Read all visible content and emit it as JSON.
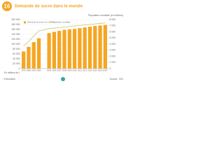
{
  "badge": "16",
  "footnote": "* Estimation",
  "source": "Source : ISO",
  "chart_data": {
    "type": "bar",
    "title": "Demande de sucre dans le monde",
    "ylabel": "En milliers de t",
    "y2label": "Population mondiale (en millions)",
    "categories": [
      "1970",
      "1980",
      "1990",
      "2000",
      "2005",
      "2006",
      "2007",
      "2008",
      "2009",
      "2010",
      "2011",
      "2012",
      "2013",
      "2014",
      "2015",
      "2016*"
    ],
    "series": [
      {
        "name": "Demande de sucre (en 1 000 t)",
        "color": "#f5a623",
        "values": [
          70000,
          89000,
          108000,
          124000,
          145000,
          150000,
          154000,
          158000,
          160000,
          162000,
          165000,
          168000,
          171000,
          174000,
          176000,
          178000
        ]
      },
      {
        "name": "Population mondiale",
        "color": "#c8c46a",
        "axis": "y2",
        "values": [
          3700,
          4440,
          5310,
          6140,
          6540,
          6620,
          6700,
          6790,
          6870,
          6960,
          7040,
          7130,
          7210,
          7300,
          7380,
          7470
        ]
      }
    ],
    "ylim": [
      0,
      200000
    ],
    "yticks": [
      0,
      {
        "value": 20000,
        "label": "20 000"
      },
      {
        "value": 40000,
        "label": "40 000"
      },
      {
        "value": 60000,
        "label": "60 000"
      },
      {
        "value": 80000,
        "label": "80 000"
      },
      {
        "value": 100000,
        "label": "100 000"
      },
      {
        "value": 120000,
        "label": "120 000"
      },
      {
        "value": 140000,
        "label": "140 000"
      },
      {
        "value": 160000,
        "label": "160 000"
      },
      {
        "value": 180000,
        "label": "180 000"
      },
      {
        "value": 200000,
        "label": "200 000"
      }
    ],
    "y2lim": [
      0,
      8000
    ],
    "y2ticks": [
      0,
      {
        "value": 1000,
        "label": "1 000"
      },
      {
        "value": 2000,
        "label": "2 000"
      },
      {
        "value": 3000,
        "label": "3 000"
      },
      {
        "value": 4000,
        "label": "4 000"
      },
      {
        "value": 5000,
        "label": "5 000"
      },
      {
        "value": 6000,
        "label": "6 000"
      },
      {
        "value": 7000,
        "label": "7 000"
      },
      {
        "value": 8000,
        "label": "8 000"
      }
    ],
    "grid": true
  }
}
